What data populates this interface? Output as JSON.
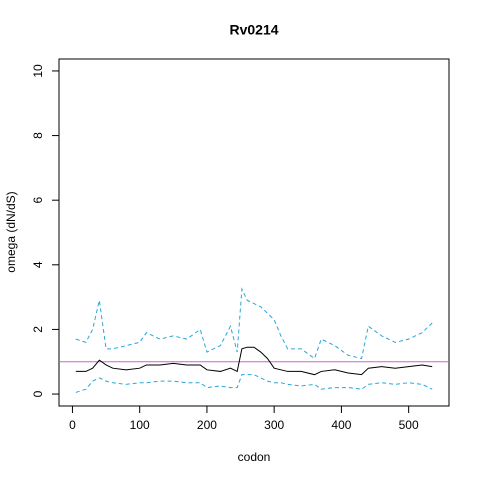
{
  "chart_data": {
    "type": "line",
    "title": "Rv0214",
    "x_label": "codon",
    "y_label": "omega (dN/dS)",
    "x": [
      5,
      20,
      30,
      40,
      50,
      60,
      80,
      100,
      110,
      130,
      150,
      170,
      190,
      200,
      220,
      235,
      245,
      252,
      260,
      270,
      280,
      290,
      300,
      310,
      320,
      340,
      360,
      370,
      390,
      410,
      430,
      440,
      460,
      480,
      500,
      520,
      535
    ],
    "series": [
      {
        "color": "#000000",
        "dash": false,
        "values": [
          0.7,
          0.7,
          0.8,
          1.05,
          0.9,
          0.8,
          0.75,
          0.8,
          0.9,
          0.9,
          0.95,
          0.9,
          0.9,
          0.75,
          0.7,
          0.8,
          0.7,
          1.4,
          1.45,
          1.45,
          1.3,
          1.1,
          0.8,
          0.75,
          0.7,
          0.7,
          0.6,
          0.7,
          0.75,
          0.65,
          0.6,
          0.8,
          0.85,
          0.8,
          0.85,
          0.9,
          0.85
        ]
      },
      {
        "color": "#29a6d9",
        "dash": true,
        "values": [
          1.7,
          1.6,
          2.0,
          2.9,
          1.4,
          1.4,
          1.5,
          1.6,
          1.9,
          1.7,
          1.8,
          1.7,
          2.0,
          1.3,
          1.5,
          2.1,
          1.3,
          3.25,
          2.9,
          2.8,
          2.7,
          2.5,
          2.3,
          1.8,
          1.4,
          1.4,
          1.1,
          1.7,
          1.5,
          1.2,
          1.1,
          2.1,
          1.8,
          1.6,
          1.7,
          1.9,
          2.2
        ]
      },
      {
        "color": "#29a6d9",
        "dash": true,
        "values": [
          0.05,
          0.15,
          0.4,
          0.5,
          0.4,
          0.35,
          0.3,
          0.35,
          0.35,
          0.4,
          0.4,
          0.35,
          0.35,
          0.2,
          0.25,
          0.2,
          0.2,
          0.6,
          0.6,
          0.6,
          0.5,
          0.4,
          0.35,
          0.35,
          0.3,
          0.25,
          0.3,
          0.15,
          0.2,
          0.2,
          0.15,
          0.3,
          0.35,
          0.3,
          0.35,
          0.3,
          0.15
        ]
      }
    ],
    "hline": 1,
    "hline_color": "#cc66cc",
    "xlim": [
      -20,
      560
    ],
    "ylim": [
      -0.37,
      10.37
    ],
    "xticks": [
      0,
      100,
      200,
      300,
      400,
      500
    ],
    "yticks": [
      0,
      2,
      4,
      6,
      8,
      10
    ]
  }
}
